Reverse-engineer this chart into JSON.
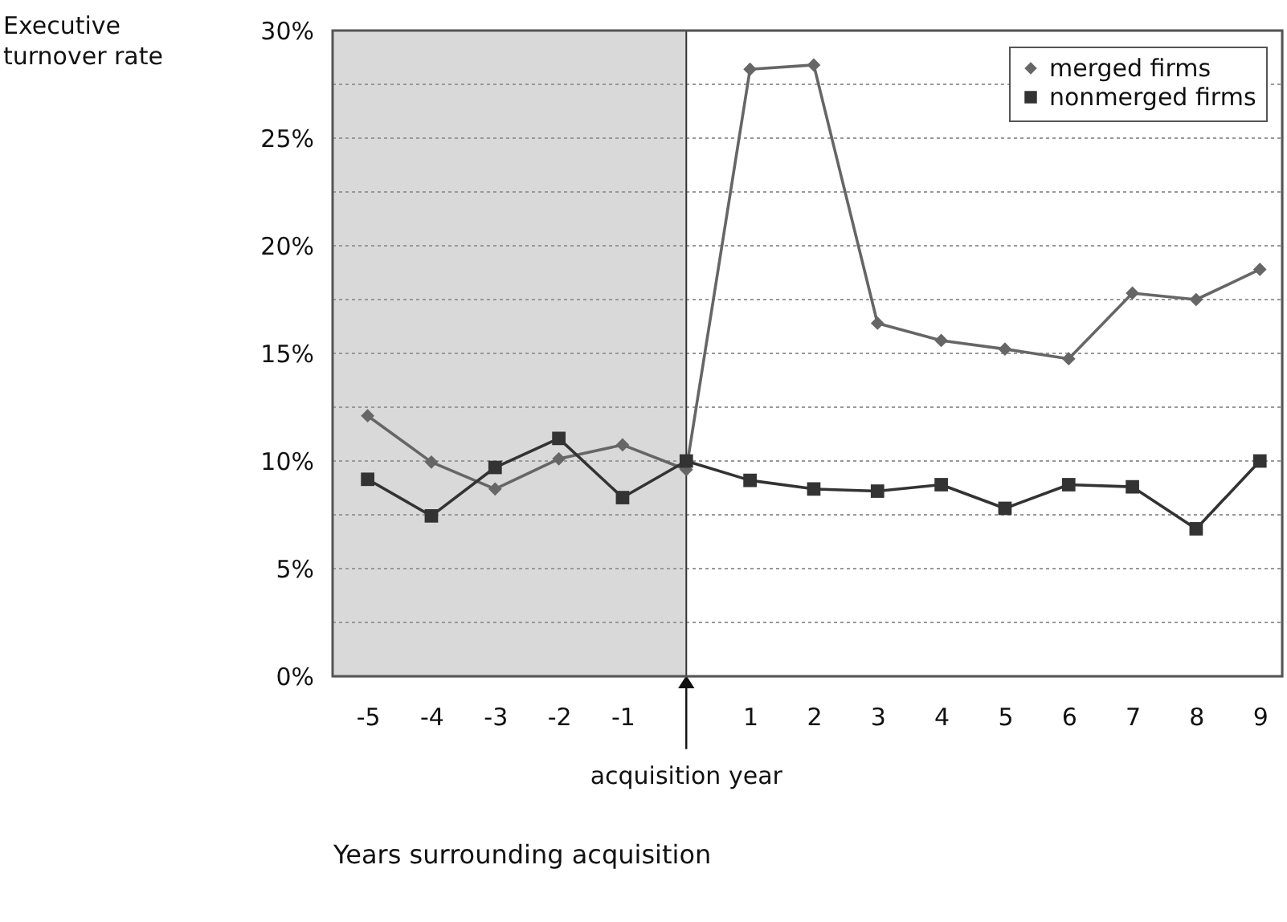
{
  "chart_data": {
    "type": "line",
    "xlabel": "Years surrounding acquisition",
    "ylabel": "Executive turnover rate",
    "x": [
      -5,
      -4,
      -3,
      -2,
      -1,
      0,
      1,
      2,
      3,
      4,
      5,
      6,
      7,
      8,
      9
    ],
    "series": [
      {
        "name": "merged firms",
        "color": "#666666",
        "marker": "diamond",
        "values": [
          12.1,
          9.95,
          8.7,
          10.1,
          10.75,
          9.6,
          28.2,
          28.4,
          16.4,
          15.6,
          15.2,
          14.75,
          17.8,
          17.5,
          18.9
        ]
      },
      {
        "name": "nonmerged firms",
        "color": "#333333",
        "marker": "square",
        "values": [
          9.15,
          7.45,
          9.7,
          11.05,
          8.3,
          10.0,
          9.1,
          8.7,
          8.6,
          8.9,
          7.8,
          8.9,
          8.8,
          6.85,
          10.0
        ]
      }
    ],
    "xlim": [
      -5.55,
      9.35
    ],
    "xticks": [
      -5,
      -4,
      -3,
      -2,
      -1,
      1,
      2,
      3,
      4,
      5,
      6,
      7,
      8,
      9
    ],
    "ylim": [
      0,
      30
    ],
    "yticks": [
      {
        "value": 0,
        "label": "0%"
      },
      {
        "value": 2.5,
        "label": null
      },
      {
        "value": 5,
        "label": "5%"
      },
      {
        "value": 7.5,
        "label": null
      },
      {
        "value": 10,
        "label": "10%"
      },
      {
        "value": 12.5,
        "label": null
      },
      {
        "value": 15,
        "label": "15%"
      },
      {
        "value": 17.5,
        "label": null
      },
      {
        "value": 20,
        "label": "20%"
      },
      {
        "value": 22.5,
        "label": null
      },
      {
        "value": 25,
        "label": "25%"
      },
      {
        "value": 27.5,
        "label": null
      },
      {
        "value": 30,
        "label": "30%"
      }
    ],
    "ref_lines": [
      {
        "axis": "x",
        "value": 0,
        "label": "acquisition year",
        "color": "#333333"
      }
    ],
    "bands": [
      {
        "axis": "x",
        "from": -5.55,
        "to": 0,
        "color": "#d9d9d9"
      }
    ],
    "grid": "y",
    "line_style": "solid",
    "legend": "top right"
  }
}
